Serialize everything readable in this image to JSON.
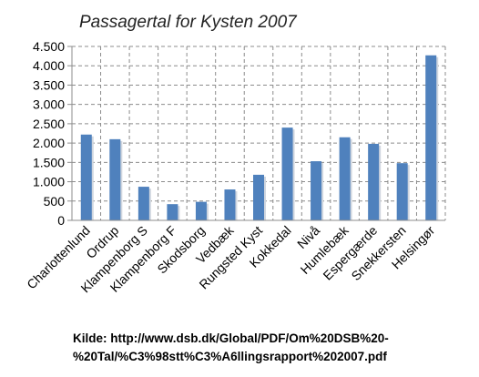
{
  "chart_data": {
    "type": "bar",
    "title": "Passagertal for Kysten 2007",
    "xlabel": "",
    "ylabel": "",
    "categories": [
      "Charlottenlund",
      "Ordrup",
      "Klampenborg S",
      "Klampenborg F",
      "Skodsborg",
      "Vedbæk",
      "Rungsted Kyst",
      "Kokkedal",
      "Nivå",
      "Humlebæk",
      "Espergærde",
      "Snekkersten",
      "Helsingør"
    ],
    "values": [
      2220,
      2100,
      870,
      420,
      480,
      800,
      1180,
      2400,
      1530,
      2150,
      1980,
      1480,
      4270
    ],
    "ylim": [
      0,
      4500
    ],
    "yticks": [
      0,
      500,
      1000,
      1500,
      2000,
      2500,
      3000,
      3500,
      4000,
      4500
    ],
    "ytick_labels": [
      "0",
      "500",
      "1.000",
      "1.500",
      "2.000",
      "2.500",
      "3.000",
      "3.500",
      "4.000",
      "4.500"
    ],
    "grid": true,
    "bar_color": "#4f81bd"
  },
  "source": {
    "line1": "Kilde: http://www.dsb.dk/Global/PDF/Om%20DSB%20-",
    "line2": "%20Tal/%C3%98stt%C3%A6llingsrapport%202007.pdf"
  }
}
